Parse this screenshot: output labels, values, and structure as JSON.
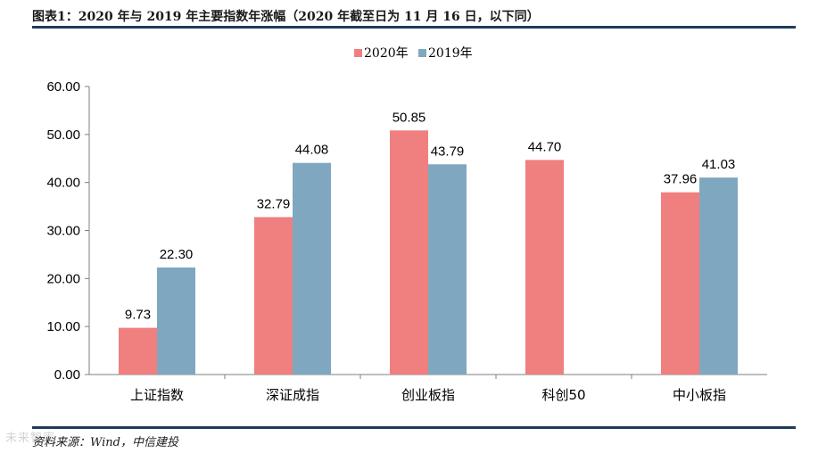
{
  "header": {
    "title": "图表1：2020 年与 2019 年主要指数年涨幅（2020 年截至日为 11 月 16 日，以下同）"
  },
  "footer": {
    "source": "资料来源：Wind，中信建投",
    "watermark": "未来智库"
  },
  "chart_data": {
    "type": "bar",
    "categories": [
      "上证指数",
      "深证成指",
      "创业板指",
      "科创50",
      "中小板指"
    ],
    "series": [
      {
        "name": "2020年",
        "values": [
          9.73,
          32.79,
          50.85,
          44.7,
          37.96
        ],
        "color": "#f07f7f"
      },
      {
        "name": "2019年",
        "values": [
          22.3,
          44.08,
          43.79,
          null,
          41.03
        ],
        "color": "#7fa8c0"
      }
    ],
    "ylim": [
      0,
      60
    ],
    "yticks": [
      "0.00",
      "10.00",
      "20.00",
      "30.00",
      "40.00",
      "50.00",
      "60.00"
    ],
    "grid": false,
    "legend_position": "top-center",
    "value_format_decimals": 2
  }
}
